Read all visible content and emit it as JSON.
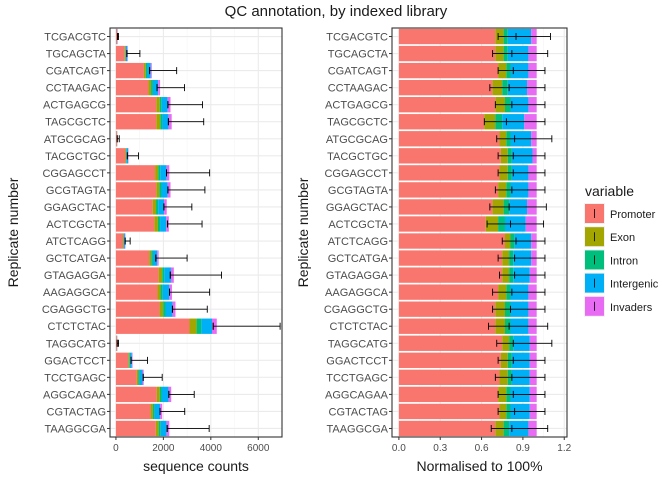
{
  "chart_data": [
    {
      "type": "bar",
      "stacked": true,
      "orientation": "horizontal",
      "title": "QC annotation, by indexed library",
      "xlabel": "sequence counts",
      "ylabel": "Replicate number",
      "xlim": [
        -250,
        7000
      ],
      "xticks": [
        0,
        2000,
        4000,
        6000
      ],
      "xtick_labels": [
        "0",
        "2000",
        "4000",
        "6000"
      ],
      "grid": true,
      "categories": [
        "TCGACGTC",
        "TGCAGCTA",
        "CGATCAGT",
        "CCTAAGAC",
        "ACTGAGCG",
        "TAGCGCTC",
        "ATGCGCAG",
        "TACGCTGC",
        "CGGAGCCT",
        "GCGTAGTA",
        "GGAGCTAC",
        "ACTCGCTA",
        "ATCTCAGG",
        "GCTCATGA",
        "GTAGAGGA",
        "AAGAGGCA",
        "CGAGGCTG",
        "CTCTCTAC",
        "TAGGCATG",
        "GGACTCCT",
        "TCCTGAGC",
        "AGGCAGAA",
        "CGTACTAG",
        "TAAGGCGA"
      ],
      "series": [
        {
          "name": "Promoter",
          "values": [
            45,
            370,
            1180,
            1370,
            1700,
            1700,
            40,
            400,
            1650,
            1700,
            1550,
            1620,
            300,
            1400,
            1800,
            1750,
            1840,
            3100,
            40,
            520,
            880,
            1720,
            1460,
            1680
          ]
        },
        {
          "name": "Exon",
          "values": [
            4,
            30,
            80,
            110,
            150,
            170,
            4,
            30,
            130,
            130,
            140,
            150,
            25,
            90,
            150,
            130,
            150,
            300,
            4,
            40,
            70,
            130,
            100,
            120
          ]
        },
        {
          "name": "Intron",
          "values": [
            3,
            20,
            50,
            80,
            80,
            90,
            3,
            20,
            90,
            90,
            90,
            90,
            15,
            70,
            90,
            90,
            100,
            200,
            3,
            30,
            40,
            90,
            70,
            90
          ]
        },
        {
          "name": "Intergenic",
          "values": [
            15,
            60,
            160,
            220,
            250,
            260,
            8,
            60,
            270,
            260,
            250,
            260,
            40,
            180,
            280,
            280,
            300,
            450,
            10,
            80,
            130,
            280,
            230,
            250
          ]
        },
        {
          "name": "Invaders",
          "values": [
            5,
            20,
            40,
            80,
            120,
            130,
            3,
            20,
            110,
            120,
            110,
            110,
            20,
            60,
            120,
            110,
            120,
            200,
            3,
            30,
            50,
            110,
            90,
            110
          ]
        }
      ],
      "error_bars": {
        "center": [
          65,
          460,
          1420,
          1730,
          2190,
          2210,
          55,
          480,
          2130,
          2190,
          2020,
          2170,
          390,
          1680,
          2290,
          2260,
          2380,
          4100,
          55,
          640,
          1150,
          2230,
          1860,
          2160
        ],
        "upper": [
          110,
          1010,
          2560,
          2890,
          3650,
          3700,
          140,
          950,
          3950,
          3750,
          3200,
          3630,
          600,
          3000,
          4450,
          3950,
          3850,
          6920,
          110,
          1330,
          1950,
          3300,
          2900,
          3930
        ]
      }
    },
    {
      "type": "bar",
      "stacked": true,
      "orientation": "horizontal",
      "xlabel": "Normalised to 100%",
      "ylabel": "Replicate number",
      "xlim": [
        -0.05,
        1.22
      ],
      "xticks": [
        0,
        0.3,
        0.6,
        0.9,
        1.2
      ],
      "xtick_labels": [
        "0.0",
        "0.3",
        "0.6",
        "0.9",
        "1.2"
      ],
      "grid": true,
      "categories": [
        "TCGACGTC",
        "TGCAGCTA",
        "CGATCAGT",
        "CCTAAGAC",
        "ACTGAGCG",
        "TAGCGCTC",
        "ATGCGCAG",
        "TACGCTGC",
        "CGGAGCCT",
        "GCGTAGTA",
        "GGAGCTAC",
        "ACTCGCTA",
        "ATCTCAGG",
        "GCTCATGA",
        "GTAGAGGA",
        "AAGAGGCA",
        "CGAGGCTG",
        "CTCTCTAC",
        "TAGGCATG",
        "GGACTCCT",
        "TCCTGAGC",
        "AGGCAGAA",
        "CGTACTAG",
        "TAAGGCGA"
      ],
      "series": [
        {
          "name": "Promoter",
          "values": [
            0.7,
            0.7,
            0.72,
            0.68,
            0.7,
            0.62,
            0.73,
            0.74,
            0.73,
            0.72,
            0.68,
            0.63,
            0.77,
            0.75,
            0.75,
            0.72,
            0.7,
            0.7,
            0.75,
            0.74,
            0.73,
            0.72,
            0.73,
            0.7
          ]
        },
        {
          "name": "Exon",
          "values": [
            0.06,
            0.06,
            0.06,
            0.07,
            0.07,
            0.08,
            0.05,
            0.05,
            0.06,
            0.06,
            0.08,
            0.09,
            0.04,
            0.05,
            0.05,
            0.06,
            0.07,
            0.07,
            0.05,
            0.05,
            0.06,
            0.06,
            0.05,
            0.06
          ]
        },
        {
          "name": "Intron",
          "values": [
            0.03,
            0.03,
            0.03,
            0.04,
            0.04,
            0.05,
            0.03,
            0.03,
            0.03,
            0.03,
            0.04,
            0.05,
            0.03,
            0.03,
            0.03,
            0.03,
            0.04,
            0.04,
            0.03,
            0.03,
            0.03,
            0.03,
            0.03,
            0.04
          ]
        },
        {
          "name": "Intergenic",
          "values": [
            0.17,
            0.15,
            0.13,
            0.14,
            0.13,
            0.16,
            0.15,
            0.15,
            0.12,
            0.13,
            0.13,
            0.15,
            0.12,
            0.13,
            0.12,
            0.13,
            0.13,
            0.13,
            0.12,
            0.13,
            0.13,
            0.14,
            0.14,
            0.14
          ]
        },
        {
          "name": "Invaders",
          "values": [
            0.04,
            0.06,
            0.06,
            0.07,
            0.06,
            0.09,
            0.04,
            0.03,
            0.06,
            0.06,
            0.07,
            0.08,
            0.04,
            0.04,
            0.05,
            0.06,
            0.06,
            0.06,
            0.05,
            0.05,
            0.05,
            0.05,
            0.05,
            0.06
          ]
        }
      ],
      "error_bars": {
        "center": [
          0.85,
          0.82,
          0.83,
          0.8,
          0.82,
          0.78,
          0.84,
          0.83,
          0.83,
          0.82,
          0.8,
          0.81,
          0.85,
          0.84,
          0.84,
          0.82,
          0.81,
          0.8,
          0.83,
          0.83,
          0.82,
          0.83,
          0.84,
          0.82
        ],
        "lower": [
          0.72,
          0.68,
          0.72,
          0.66,
          0.7,
          0.62,
          0.71,
          0.72,
          0.72,
          0.7,
          0.66,
          0.64,
          0.75,
          0.72,
          0.73,
          0.68,
          0.68,
          0.65,
          0.71,
          0.72,
          0.7,
          0.72,
          0.72,
          0.67
        ],
        "upper": [
          1.1,
          1.08,
          1.06,
          1.06,
          1.06,
          1.06,
          1.11,
          1.06,
          1.06,
          1.06,
          1.07,
          1.05,
          1.06,
          1.06,
          1.06,
          1.06,
          1.06,
          1.08,
          1.11,
          1.06,
          1.06,
          1.06,
          1.06,
          1.08
        ]
      }
    }
  ],
  "legend": {
    "title": "variable",
    "position": "right",
    "items": [
      {
        "label": "Promoter",
        "color": "#F8766D"
      },
      {
        "label": "Exon",
        "color": "#A3A500"
      },
      {
        "label": "Intron",
        "color": "#00BF7D"
      },
      {
        "label": "Intergenic",
        "color": "#00B0F6"
      },
      {
        "label": "Invaders",
        "color": "#E76BF3"
      }
    ]
  },
  "colors": {
    "panel_background": "#ffffff",
    "grid_major": "#EBEBEB",
    "grid_minor": "#F5F5F5",
    "panel_border": "#333333",
    "error_bar": "#000000"
  }
}
